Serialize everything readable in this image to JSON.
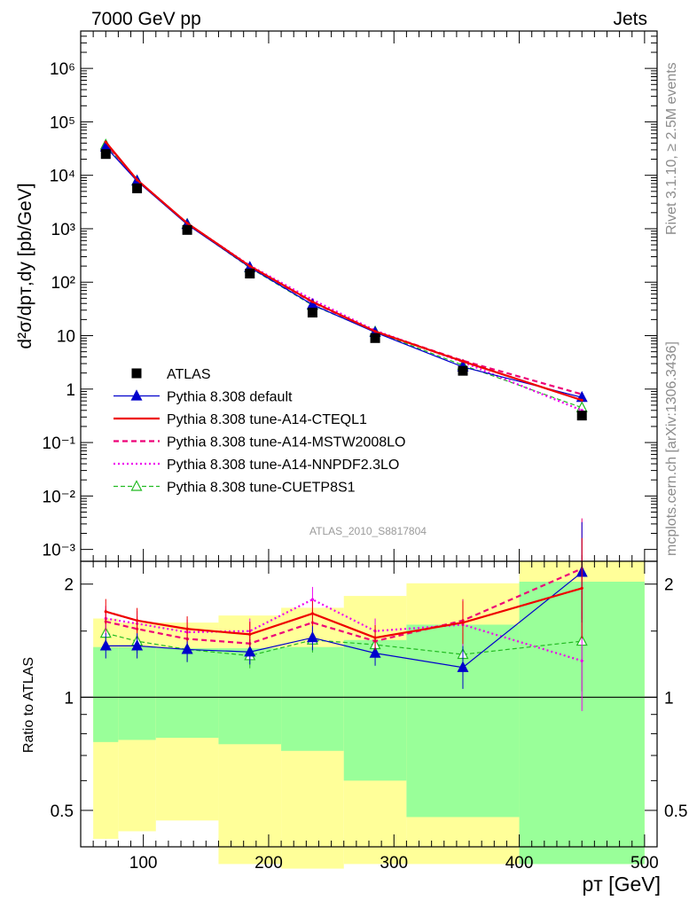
{
  "header": {
    "left": "7000 GeV pp",
    "right": "Jets"
  },
  "side_labels": {
    "rivet": "Rivet 3.1.10, ≥ 2.5M events",
    "mcplots": "mcplots.cern.ch [arXiv:1306.3436]"
  },
  "analysis_id": "ATLAS_2010_S8817804",
  "colors": {
    "atlas": "#000000",
    "default": "#0000cc",
    "cteql1": "#ee0000",
    "mstw": "#ee0077",
    "nnpdf": "#ee00ee",
    "cuetp8s1": "#22bb22",
    "band_outer": "#ffff99",
    "band_inner": "#99ff99"
  },
  "chart_data": [
    {
      "type": "line",
      "name": "main",
      "ylabel": "d²σ/dpᴛ,dy [pb/GeV]",
      "yscale": "log",
      "xlim": [
        50,
        510
      ],
      "ylim": [
        0.0006,
        5000000
      ],
      "ytick_labels": [
        "10⁻³",
        "10⁻²",
        "10⁻¹",
        "1",
        "10",
        "10²",
        "10³",
        "10⁴",
        "10⁵",
        "10⁶"
      ],
      "x": [
        70,
        95,
        135,
        185,
        235,
        285,
        355,
        450
      ],
      "legend_placement": "lower-left",
      "series": [
        {
          "name": "ATLAS",
          "key": "atlas",
          "values": [
            25000,
            5700,
            950,
            145,
            27,
            9,
            2.2,
            0.32
          ]
        },
        {
          "name": "Pythia 8.308 default",
          "key": "default",
          "values": [
            34000,
            7800,
            1200,
            190,
            38,
            11.5,
            2.6,
            0.7
          ]
        },
        {
          "name": "Pythia 8.308 tune-A14-CTEQL1",
          "key": "cteql1",
          "values": [
            42000,
            8200,
            1270,
            200,
            43,
            12,
            3.3,
            0.62
          ]
        },
        {
          "name": "Pythia 8.308 tune-A14-MSTW2008LO",
          "key": "mstw",
          "values": [
            40000,
            8100,
            1240,
            198,
            42,
            12,
            3.4,
            0.8
          ]
        },
        {
          "name": "Pythia 8.308 tune-A14-NNPDF2.3LO",
          "key": "nnpdf",
          "values": [
            41000,
            8200,
            1260,
            205,
            47,
            12.5,
            3.2,
            0.4
          ]
        },
        {
          "name": "Pythia 8.308 tune-CUETP8S1",
          "key": "cuetp8s1",
          "values": [
            37000,
            7900,
            1220,
            186,
            37,
            11.8,
            2.8,
            0.45
          ]
        }
      ]
    },
    {
      "type": "line",
      "name": "ratio",
      "ylabel": "Ratio to ATLAS",
      "xlabel": "pᴛ [GeV]",
      "yscale": "log",
      "xlim": [
        50,
        510
      ],
      "ylim": [
        0.4,
        2.3
      ],
      "yticks": [
        0.5,
        1,
        2
      ],
      "ytick_labels": [
        "0.5",
        "1",
        "2"
      ],
      "xticks": [
        100,
        200,
        300,
        400,
        500
      ],
      "xtick_labels": [
        "100",
        "200",
        "300",
        "400",
        "500"
      ],
      "x": [
        70,
        95,
        135,
        185,
        235,
        285,
        355,
        450
      ],
      "bins": [
        [
          60,
          80
        ],
        [
          80,
          110
        ],
        [
          110,
          160
        ],
        [
          160,
          210
        ],
        [
          210,
          260
        ],
        [
          260,
          310
        ],
        [
          310,
          400
        ],
        [
          400,
          500
        ]
      ],
      "band_outer": [
        [
          0.42,
          1.62
        ],
        [
          0.44,
          1.58
        ],
        [
          0.47,
          1.58
        ],
        [
          0.36,
          1.65
        ],
        [
          0.35,
          1.73
        ],
        [
          0.36,
          1.86
        ],
        [
          0.36,
          2.01
        ],
        [
          0.36,
          2.3
        ]
      ],
      "band_inner": [
        [
          0.76,
          1.36
        ],
        [
          0.77,
          1.36
        ],
        [
          0.78,
          1.35
        ],
        [
          0.75,
          1.35
        ],
        [
          0.72,
          1.36
        ],
        [
          0.6,
          1.42
        ],
        [
          0.48,
          1.56
        ],
        [
          0.36,
          2.03
        ]
      ],
      "series": [
        {
          "name": "Pythia 8.308 default",
          "key": "default",
          "values": [
            1.37,
            1.37,
            1.34,
            1.32,
            1.44,
            1.31,
            1.2,
            2.15
          ]
        },
        {
          "name": "Pythia 8.308 tune-A14-CTEQL1",
          "key": "cteql1",
          "values": [
            1.69,
            1.6,
            1.52,
            1.47,
            1.67,
            1.44,
            1.58,
            1.95
          ]
        },
        {
          "name": "Pythia 8.308 tune-A14-MSTW2008LO",
          "key": "mstw",
          "values": [
            1.59,
            1.52,
            1.43,
            1.39,
            1.58,
            1.41,
            1.6,
            2.2
          ]
        },
        {
          "name": "Pythia 8.308 tune-A14-NNPDF2.3LO",
          "key": "nnpdf",
          "values": [
            1.62,
            1.57,
            1.49,
            1.5,
            1.82,
            1.5,
            1.56,
            1.25
          ]
        },
        {
          "name": "Pythia 8.308 tune-CUETP8S1",
          "key": "cuetp8s1",
          "values": [
            1.48,
            1.41,
            1.34,
            1.29,
            1.42,
            1.38,
            1.3,
            1.41
          ]
        }
      ]
    }
  ]
}
